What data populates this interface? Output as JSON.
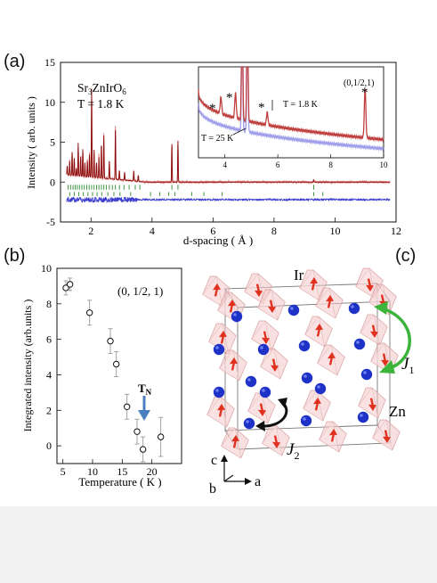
{
  "panel_labels": {
    "a": "(a)",
    "b": "(b)",
    "c": "(c)"
  },
  "colors": {
    "obs_points": "#e58a8a",
    "calc_line": "#8a0c0c",
    "low_temp": "#c04040",
    "high_temp": "#8a8ae6",
    "bragg_ticks": "#2a8a2a",
    "difference": "#3a3acc",
    "tn_arrow": "#4a7fbf",
    "spin_arrow": "#e0301e",
    "zn_sphere": "#1e32c8",
    "j1_arrow": "#3cb43c",
    "j2_arrow": "#111111",
    "octahedron": "#f3c6c6"
  },
  "panel_a": {
    "compound_main": "Sr",
    "compound_sub1": "3",
    "compound_mid": "ZnIrO",
    "compound_sub2": "6",
    "temperature": "T = 1.8 K",
    "xlabel": "d-spacing ( Å )",
    "ylabel": "Intensity ( arb. units )",
    "inset": {
      "label_low": "T = 1.8 K",
      "label_high": "T = 25 K",
      "peak_label": "(0,1/2,1)",
      "star": "*"
    }
  },
  "panel_b": {
    "annotation": "(0, 1/2, 1)",
    "tn_main": "T",
    "tn_sub": "N",
    "xlabel": "Temperature ( K )",
    "ylabel": "Integrated intensity (arb.units )"
  },
  "panel_c": {
    "ir_label": "Ir",
    "zn_label": "Zn",
    "j1_main": "J",
    "j1_sub": "1",
    "j2_main": "J",
    "j2_sub": "2",
    "axis_c": "c",
    "axis_a": "a",
    "axis_b": "b"
  },
  "chart_data": [
    {
      "type": "line",
      "panel": "a-main",
      "xlim": [
        1,
        12
      ],
      "ylim": [
        -5,
        15
      ],
      "xticks": [
        2,
        4,
        6,
        8,
        10,
        12
      ],
      "yticks": [
        -5,
        0,
        5,
        10,
        15
      ],
      "peaks": [
        {
          "d": 1.22,
          "intensity": 1.2
        },
        {
          "d": 1.3,
          "intensity": 1.8
        },
        {
          "d": 1.38,
          "intensity": 3.0
        },
        {
          "d": 1.45,
          "intensity": 2.2
        },
        {
          "d": 1.52,
          "intensity": 1.0
        },
        {
          "d": 1.58,
          "intensity": 4.2
        },
        {
          "d": 1.66,
          "intensity": 2.5
        },
        {
          "d": 1.73,
          "intensity": 3.4
        },
        {
          "d": 1.8,
          "intensity": 1.8
        },
        {
          "d": 1.88,
          "intensity": 2.0
        },
        {
          "d": 1.95,
          "intensity": 2.8
        },
        {
          "d": 2.02,
          "intensity": 11.5
        },
        {
          "d": 2.1,
          "intensity": 3.5
        },
        {
          "d": 2.18,
          "intensity": 2.0
        },
        {
          "d": 2.26,
          "intensity": 2.6
        },
        {
          "d": 2.34,
          "intensity": 4.4
        },
        {
          "d": 2.42,
          "intensity": 5.4
        },
        {
          "d": 2.6,
          "intensity": 2.2
        },
        {
          "d": 2.8,
          "intensity": 6.4
        },
        {
          "d": 2.93,
          "intensity": 1.2
        },
        {
          "d": 3.1,
          "intensity": 1.0
        },
        {
          "d": 3.4,
          "intensity": 1.3
        },
        {
          "d": 3.55,
          "intensity": 0.8
        },
        {
          "d": 4.65,
          "intensity": 5.0
        },
        {
          "d": 4.85,
          "intensity": 5.2
        },
        {
          "d": 9.3,
          "intensity": 0.25
        }
      ],
      "bragg_ticks_row1": [
        1.25,
        1.33,
        1.41,
        1.48,
        1.55,
        1.62,
        1.7,
        1.78,
        1.86,
        1.94,
        2.02,
        2.1,
        2.18,
        2.26,
        2.34,
        2.42,
        2.5,
        2.6,
        2.7,
        2.8,
        2.93,
        3.08,
        3.25,
        3.45,
        3.6,
        4.65,
        4.85,
        9.3
      ],
      "bragg_ticks_row2": [
        1.3,
        1.45,
        1.6,
        1.75,
        1.9,
        2.05,
        2.2,
        2.35,
        2.55,
        2.75,
        2.95,
        3.3,
        3.95,
        4.25,
        4.55,
        4.75,
        5.3,
        5.7,
        6.3,
        9.3,
        9.6
      ]
    },
    {
      "type": "line",
      "panel": "a-inset",
      "xlim": [
        3,
        10
      ],
      "xticks": [
        4,
        6,
        8,
        10
      ],
      "series": [
        {
          "name": "T = 1.8 K",
          "baseline_start": 0.75,
          "baseline_end": 0.2
        },
        {
          "name": "T = 25 K",
          "baseline_start": 0.6,
          "baseline_end": 0.1
        }
      ],
      "magnetic_peaks": [
        {
          "d": 3.85,
          "height": 0.18
        },
        {
          "d": 4.4,
          "height": 0.28
        },
        {
          "d": 5.6,
          "height": 0.14
        },
        {
          "d": 9.3,
          "height": 0.55
        }
      ],
      "nuclear_peaks": [
        {
          "d": 4.65
        },
        {
          "d": 4.85
        }
      ]
    },
    {
      "type": "scatter",
      "panel": "b",
      "xlabel": "Temperature ( K )",
      "ylabel": "Integrated intensity (arb.units )",
      "xlim": [
        4,
        25
      ],
      "ylim": [
        -1,
        10
      ],
      "xticks": [
        5,
        10,
        15,
        20
      ],
      "yticks": [
        0,
        2,
        4,
        6,
        8,
        10
      ],
      "points": [
        {
          "x": 5.5,
          "y": 8.9,
          "err": 0.4
        },
        {
          "x": 6.2,
          "y": 9.1,
          "err": 0.35
        },
        {
          "x": 9.5,
          "y": 7.5,
          "err": 0.7
        },
        {
          "x": 13.0,
          "y": 5.9,
          "err": 0.7
        },
        {
          "x": 14.0,
          "y": 4.6,
          "err": 0.7
        },
        {
          "x": 15.8,
          "y": 2.2,
          "err": 0.7
        },
        {
          "x": 17.5,
          "y": 0.8,
          "err": 0.7
        },
        {
          "x": 18.5,
          "y": -0.2,
          "err": 0.7
        },
        {
          "x": 21.5,
          "y": 0.5,
          "err": 1.1
        }
      ],
      "tn": 17.5
    }
  ]
}
